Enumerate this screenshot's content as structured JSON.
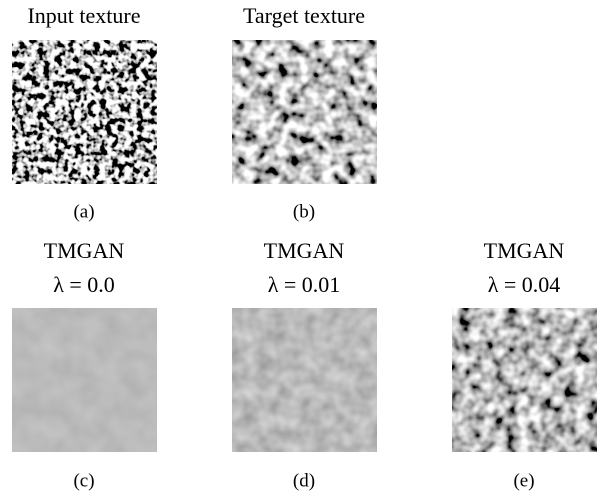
{
  "panels": [
    {
      "title": "Input texture",
      "caption": "(a)"
    },
    {
      "title": "Target texture",
      "caption": "(b)"
    },
    {
      "title": "TMGAN",
      "subtitle": "λ = 0.0",
      "caption": "(c)"
    },
    {
      "title": "TMGAN",
      "subtitle": "λ = 0.01",
      "caption": "(d)"
    },
    {
      "title": "TMGAN",
      "subtitle": "λ = 0.04",
      "caption": "(e)"
    }
  ]
}
